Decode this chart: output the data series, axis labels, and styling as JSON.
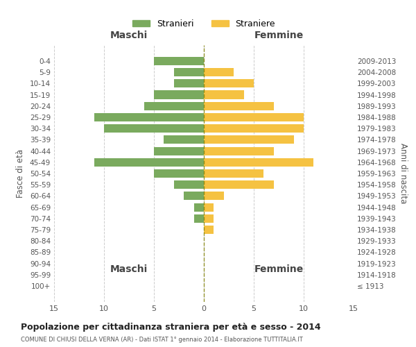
{
  "age_groups": [
    "100+",
    "95-99",
    "90-94",
    "85-89",
    "80-84",
    "75-79",
    "70-74",
    "65-69",
    "60-64",
    "55-59",
    "50-54",
    "45-49",
    "40-44",
    "35-39",
    "30-34",
    "25-29",
    "20-24",
    "15-19",
    "10-14",
    "5-9",
    "0-4"
  ],
  "birth_years": [
    "≤ 1913",
    "1914-1918",
    "1919-1923",
    "1924-1928",
    "1929-1933",
    "1934-1938",
    "1939-1943",
    "1944-1948",
    "1949-1953",
    "1954-1958",
    "1959-1963",
    "1964-1968",
    "1969-1973",
    "1974-1978",
    "1979-1983",
    "1984-1988",
    "1989-1993",
    "1994-1998",
    "1999-2003",
    "2004-2008",
    "2009-2013"
  ],
  "maschi": [
    0,
    0,
    0,
    0,
    0,
    0,
    1,
    1,
    2,
    3,
    5,
    11,
    5,
    4,
    10,
    11,
    6,
    5,
    3,
    3,
    5
  ],
  "femmine": [
    0,
    0,
    0,
    0,
    0,
    1,
    1,
    1,
    2,
    7,
    6,
    11,
    7,
    9,
    10,
    10,
    7,
    4,
    5,
    3,
    0
  ],
  "color_maschi": "#7aaa5e",
  "color_femmine": "#f5c242",
  "title": "Popolazione per cittadinanza straniera per età e sesso - 2014",
  "subtitle": "COMUNE DI CHIUSI DELLA VERNA (AR) - Dati ISTAT 1° gennaio 2014 - Elaborazione TUTTITALIA.IT",
  "ylabel_left": "Fasce di età",
  "ylabel_right": "Anni di nascita",
  "xlabel_maschi": "Maschi",
  "xlabel_femmine": "Femmine",
  "legend_maschi": "Stranieri",
  "legend_femmine": "Straniere",
  "xlim": 15,
  "background_color": "#ffffff",
  "grid_color": "#cccccc",
  "label_color": "#555555"
}
